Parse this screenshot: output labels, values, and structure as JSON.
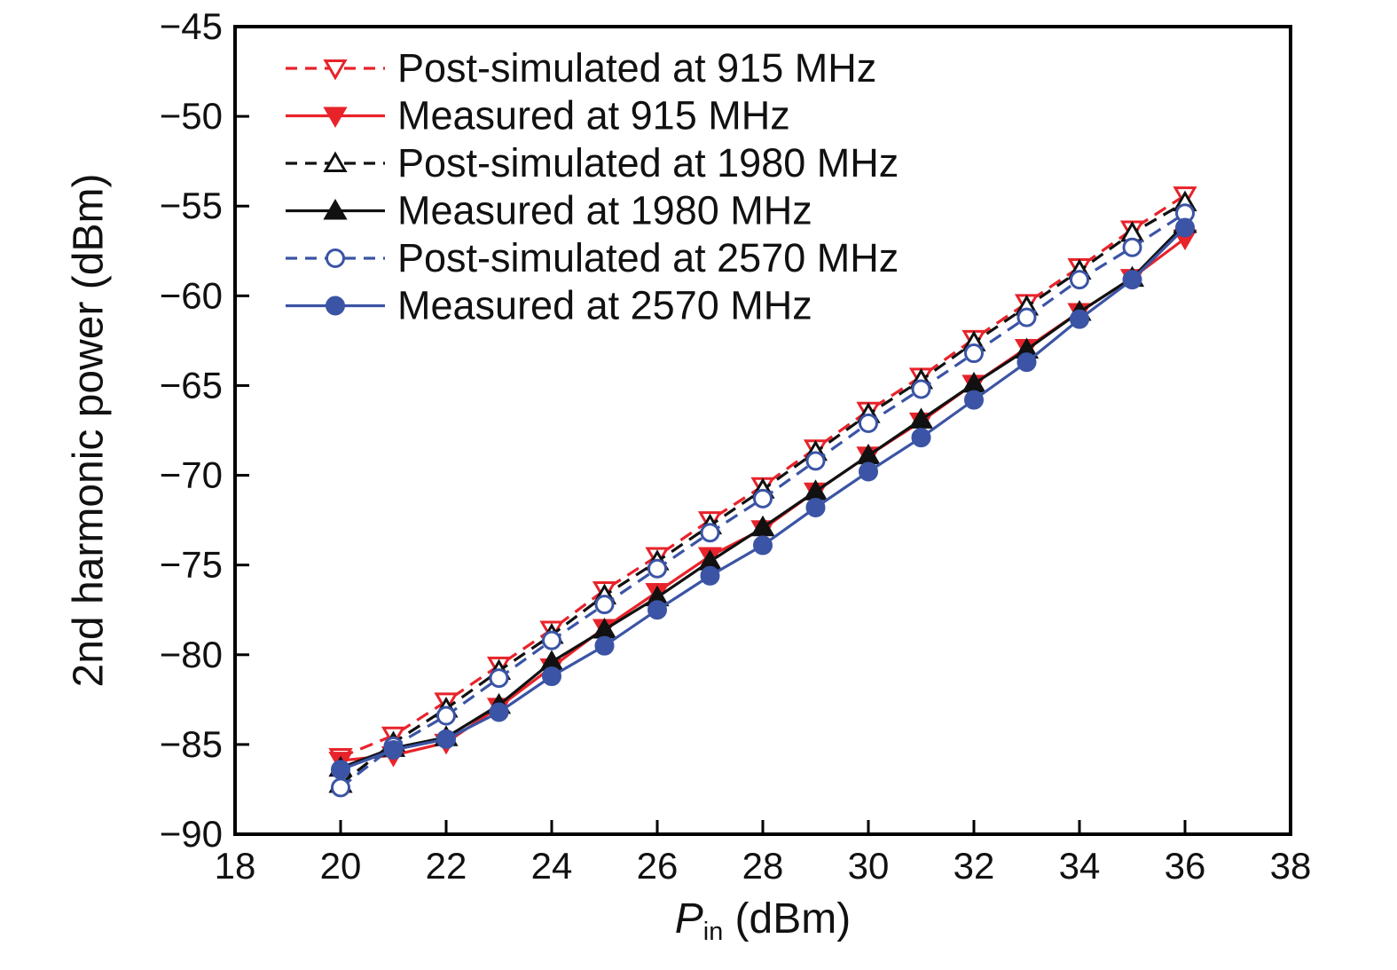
{
  "chart_data": {
    "type": "line",
    "title": "",
    "ylabel": "2nd harmonic power (dBm)",
    "xlabel": "Pin (dBm)",
    "xlabel_symbol": "P",
    "xlabel_subscript": "in",
    "xlabel_unit": " (dBm)",
    "xlim": [
      18,
      38
    ],
    "ylim": [
      -90,
      -45
    ],
    "xticks": [
      18,
      20,
      22,
      24,
      26,
      28,
      30,
      32,
      34,
      36,
      38
    ],
    "yticks": [
      -90,
      -85,
      -80,
      -75,
      -70,
      -65,
      -60,
      -55,
      -50,
      -45
    ],
    "grid": false,
    "legend_position": "upper-left",
    "x": [
      20,
      21,
      22,
      23,
      24,
      25,
      26,
      27,
      28,
      29,
      30,
      31,
      32,
      33,
      34,
      35,
      36
    ],
    "series": [
      {
        "name": "Post-simulated at 915 MHz",
        "color": "#e8232a",
        "line": "dashed",
        "marker": "triangle-down-open",
        "values": [
          -85.7,
          -84.5,
          -82.6,
          -80.6,
          -78.6,
          -76.4,
          -74.5,
          -72.5,
          -70.6,
          -68.5,
          -66.4,
          -64.5,
          -62.4,
          -60.4,
          -58.4,
          -56.3,
          -54.4
        ]
      },
      {
        "name": "Measured at 915 MHz",
        "color": "#e8232a",
        "line": "solid",
        "marker": "triangle-down-filled",
        "values": [
          -85.9,
          -85.6,
          -84.9,
          -82.9,
          -80.7,
          -78.5,
          -76.5,
          -74.5,
          -73.0,
          -70.9,
          -68.9,
          -67.0,
          -64.9,
          -62.9,
          -60.9,
          -59.0,
          -56.8
        ]
      },
      {
        "name": "Post-simulated at 1980 MHz",
        "color": "#111111",
        "line": "dashed",
        "marker": "triangle-up-open",
        "values": [
          -87.2,
          -84.9,
          -83.0,
          -80.9,
          -78.9,
          -76.7,
          -74.8,
          -72.8,
          -70.8,
          -68.7,
          -66.6,
          -64.7,
          -62.6,
          -60.6,
          -58.6,
          -56.5,
          -54.8
        ]
      },
      {
        "name": "Measured at 1980 MHz",
        "color": "#111111",
        "line": "solid",
        "marker": "triangle-up-filled",
        "values": [
          -86.3,
          -85.2,
          -84.6,
          -82.8,
          -80.4,
          -78.6,
          -76.8,
          -74.8,
          -72.9,
          -70.9,
          -68.9,
          -66.9,
          -64.9,
          -63.0,
          -60.9,
          -59.0,
          -56.0
        ]
      },
      {
        "name": "Post-simulated at 2570 MHz",
        "color": "#3b54a5",
        "line": "dashed",
        "marker": "circle-open",
        "values": [
          -87.4,
          -85.1,
          -83.4,
          -81.3,
          -79.2,
          -77.2,
          -75.2,
          -73.2,
          -71.3,
          -69.2,
          -67.1,
          -65.2,
          -63.2,
          -61.2,
          -59.1,
          -57.3,
          -55.4
        ]
      },
      {
        "name": "Measured at 2570 MHz",
        "color": "#3b54a5",
        "line": "solid",
        "marker": "circle-filled",
        "values": [
          -86.4,
          -85.3,
          -84.7,
          -83.2,
          -81.2,
          -79.5,
          -77.5,
          -75.6,
          -73.9,
          -71.8,
          -69.8,
          -67.9,
          -65.8,
          -63.7,
          -61.3,
          -59.1,
          -56.2
        ]
      }
    ]
  }
}
